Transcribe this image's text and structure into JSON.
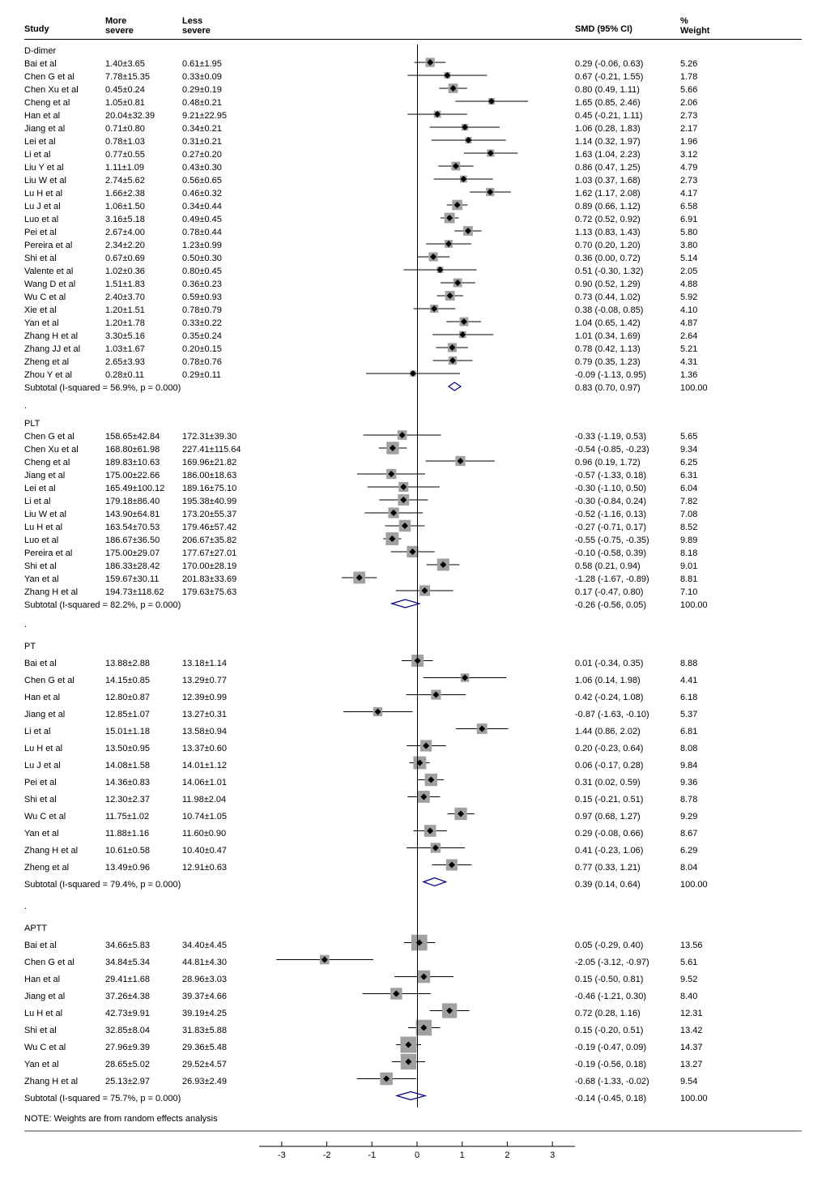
{
  "chart_type": "forest-plot",
  "headers": {
    "study": "Study",
    "more": "More\nsevere",
    "less": "Less\nsevere",
    "smd": "SMD (95% CI)",
    "weight": "%\nWeight"
  },
  "plot": {
    "x_min": -3.5,
    "x_max": 3.5,
    "zero_line": 0,
    "ticks": [
      -3,
      -2,
      -1,
      0,
      1,
      2,
      3
    ],
    "marker_fill": "#a0a0a0",
    "marker_stroke": "#000",
    "line_color": "#000",
    "diamond_fill": "none",
    "diamond_stroke": "#000080",
    "diamond_stroke_width": 1.2,
    "background": "#ffffff"
  },
  "note": "NOTE: Weights are from random effects analysis",
  "groups": [
    {
      "name": "D-dimer",
      "subtotal_text": "Subtotal  (I-squared = 56.9%, p = 0.000)",
      "subtotal": {
        "smd": 0.83,
        "lo": 0.7,
        "hi": 0.97,
        "weight": "100.00"
      },
      "row_class": "",
      "rows": [
        {
          "study": "Bai et al",
          "more": "1.40±3.65",
          "less": "0.61±1.95",
          "smd": 0.29,
          "lo": -0.06,
          "hi": 0.63,
          "w": 5.26,
          "ci": "0.29 (-0.06, 0.63)",
          "wt": "5.26"
        },
        {
          "study": "Chen G et al",
          "more": "7.78±15.35",
          "less": "0.33±0.09",
          "smd": 0.67,
          "lo": -0.21,
          "hi": 1.55,
          "w": 1.78,
          "ci": "0.67 (-0.21, 1.55)",
          "wt": "1.78"
        },
        {
          "study": "Chen Xu et al",
          "more": "0.45±0.24",
          "less": "0.29±0.19",
          "smd": 0.8,
          "lo": 0.49,
          "hi": 1.11,
          "w": 5.66,
          "ci": "0.80 (0.49, 1.11)",
          "wt": "5.66"
        },
        {
          "study": "Cheng et al",
          "more": "1.05±0.81",
          "less": "0.48±0.21",
          "smd": 1.65,
          "lo": 0.85,
          "hi": 2.46,
          "w": 2.06,
          "ci": "1.65 (0.85, 2.46)",
          "wt": "2.06",
          "arrow_right": true
        },
        {
          "study": "Han et al",
          "more": "20.04±32.39",
          "less": "9.21±22.95",
          "smd": 0.45,
          "lo": -0.21,
          "hi": 1.11,
          "w": 2.73,
          "ci": "0.45 (-0.21, 1.11)",
          "wt": "2.73"
        },
        {
          "study": "Jiang et al",
          "more": "0.71±0.80",
          "less": "0.34±0.21",
          "smd": 1.06,
          "lo": 0.28,
          "hi": 1.83,
          "w": 2.17,
          "ci": "1.06 (0.28, 1.83)",
          "wt": "2.17"
        },
        {
          "study": "Lei et al",
          "more": "0.78±1.03",
          "less": "0.31±0.21",
          "smd": 1.14,
          "lo": 0.32,
          "hi": 1.97,
          "w": 1.96,
          "ci": "1.14 (0.32, 1.97)",
          "wt": "1.96"
        },
        {
          "study": "Li et al",
          "more": "0.77±0.55",
          "less": "0.27±0.20",
          "smd": 1.63,
          "lo": 1.04,
          "hi": 2.23,
          "w": 3.12,
          "ci": "1.63 (1.04, 2.23)",
          "wt": "3.12"
        },
        {
          "study": "Liu Y et al",
          "more": "1.11±1.09",
          "less": "0.43±0.30",
          "smd": 0.86,
          "lo": 0.47,
          "hi": 1.25,
          "w": 4.79,
          "ci": "0.86 (0.47, 1.25)",
          "wt": "4.79"
        },
        {
          "study": "Liu W et al",
          "more": "2.74±5.62",
          "less": "0.56±0.65",
          "smd": 1.03,
          "lo": 0.37,
          "hi": 1.68,
          "w": 2.73,
          "ci": "1.03 (0.37, 1.68)",
          "wt": "2.73"
        },
        {
          "study": "Lu H et al",
          "more": "1.66±2.38",
          "less": "0.46±0.32",
          "smd": 1.62,
          "lo": 1.17,
          "hi": 2.08,
          "w": 4.17,
          "ci": "1.62 (1.17, 2.08)",
          "wt": "4.17"
        },
        {
          "study": "Lu J et al",
          "more": "1.06±1.50",
          "less": "0.34±0.44",
          "smd": 0.89,
          "lo": 0.66,
          "hi": 1.12,
          "w": 6.58,
          "ci": "0.89 (0.66, 1.12)",
          "wt": "6.58"
        },
        {
          "study": "Luo et al",
          "more": "3.16±5.18",
          "less": "0.49±0.45",
          "smd": 0.72,
          "lo": 0.52,
          "hi": 0.92,
          "w": 6.91,
          "ci": "0.72 (0.52, 0.92)",
          "wt": "6.91"
        },
        {
          "study": "Pei et al",
          "more": "2.67±4.00",
          "less": "0.78±0.44",
          "smd": 1.13,
          "lo": 0.83,
          "hi": 1.43,
          "w": 5.8,
          "ci": "1.13 (0.83, 1.43)",
          "wt": "5.80"
        },
        {
          "study": "Pereira et al",
          "more": "2.34±2.20",
          "less": "1.23±0.99",
          "smd": 0.7,
          "lo": 0.2,
          "hi": 1.2,
          "w": 3.8,
          "ci": "0.70 (0.20, 1.20)",
          "wt": "3.80"
        },
        {
          "study": "Shi et al",
          "more": "0.67±0.69",
          "less": "0.50±0.30",
          "smd": 0.36,
          "lo": 0.0,
          "hi": 0.72,
          "w": 5.14,
          "ci": "0.36 (0.00, 0.72)",
          "wt": "5.14"
        },
        {
          "study": "Valente et al",
          "more": "1.02±0.36",
          "less": "0.80±0.45",
          "smd": 0.51,
          "lo": -0.3,
          "hi": 1.32,
          "w": 2.05,
          "ci": "0.51 (-0.30, 1.32)",
          "wt": "2.05"
        },
        {
          "study": "Wang D et al",
          "more": "1.51±1.83",
          "less": "0.36±0.23",
          "smd": 0.9,
          "lo": 0.52,
          "hi": 1.29,
          "w": 4.88,
          "ci": "0.90 (0.52, 1.29)",
          "wt": "4.88"
        },
        {
          "study": "Wu C et al",
          "more": "2.40±3.70",
          "less": "0.59±0.93",
          "smd": 0.73,
          "lo": 0.44,
          "hi": 1.02,
          "w": 5.92,
          "ci": "0.73 (0.44, 1.02)",
          "wt": "5.92"
        },
        {
          "study": "Xie et al",
          "more": "1.20±1.51",
          "less": "0.78±0.79",
          "smd": 0.38,
          "lo": -0.08,
          "hi": 0.85,
          "w": 4.1,
          "ci": "0.38 (-0.08, 0.85)",
          "wt": "4.10"
        },
        {
          "study": "Yan et al",
          "more": "1.20±1.78",
          "less": "0.33±0.22",
          "smd": 1.04,
          "lo": 0.65,
          "hi": 1.42,
          "w": 4.87,
          "ci": "1.04 (0.65, 1.42)",
          "wt": "4.87"
        },
        {
          "study": "Zhang H et al",
          "more": "3.30±5.16",
          "less": "0.35±0.24",
          "smd": 1.01,
          "lo": 0.34,
          "hi": 1.69,
          "w": 2.64,
          "ci": "1.01 (0.34, 1.69)",
          "wt": "2.64"
        },
        {
          "study": "Zhang JJ et al",
          "more": "1.03±1.67",
          "less": "0.20±0.15",
          "smd": 0.78,
          "lo": 0.42,
          "hi": 1.13,
          "w": 5.21,
          "ci": "0.78 (0.42, 1.13)",
          "wt": "5.21"
        },
        {
          "study": "Zheng et al",
          "more": "2.65±3.93",
          "less": "0.78±0.76",
          "smd": 0.79,
          "lo": 0.35,
          "hi": 1.23,
          "w": 4.31,
          "ci": "0.79 (0.35, 1.23)",
          "wt": "4.31"
        },
        {
          "study": "Zhou Y et al",
          "more": "0.28±0.11",
          "less": "0.29±0.11",
          "smd": -0.09,
          "lo": -1.13,
          "hi": 0.95,
          "w": 1.36,
          "ci": "-0.09 (-1.13, 0.95)",
          "wt": "1.36"
        }
      ]
    },
    {
      "name": "PLT",
      "prefix": ".",
      "subtotal_text": "Subtotal (I-squared = 82.2%, p = 0.000)",
      "subtotal": {
        "smd": -0.26,
        "lo": -0.56,
        "hi": 0.05,
        "weight": "100.00"
      },
      "row_class": "",
      "rows": [
        {
          "study": "Chen G et al",
          "more": "158.65±42.84",
          "less": "172.31±39.30",
          "smd": -0.33,
          "lo": -1.19,
          "hi": 0.53,
          "w": 5.65,
          "ci": "-0.33 (-1.19, 0.53)",
          "wt": "5.65"
        },
        {
          "study": "Chen Xu et al",
          "more": "168.80±61.98",
          "less": "227.41±115.64",
          "smd": -0.54,
          "lo": -0.85,
          "hi": -0.23,
          "w": 9.34,
          "ci": "-0.54 (-0.85, -0.23)",
          "wt": "9.34"
        },
        {
          "study": "Cheng et al",
          "more": "189.83±10.63",
          "less": "169.96±21.82",
          "smd": 0.96,
          "lo": 0.19,
          "hi": 1.72,
          "w": 6.25,
          "ci": "0.96 (0.19, 1.72)",
          "wt": "6.25"
        },
        {
          "study": "Jiang et al",
          "more": "175.00±22.66",
          "less": "186.00±18.63",
          "smd": -0.57,
          "lo": -1.33,
          "hi": 0.18,
          "w": 6.31,
          "ci": "-0.57 (-1.33, 0.18)",
          "wt": "6.31"
        },
        {
          "study": "Lei et al",
          "more": "165.49±100.12",
          "less": "189.16±75.10",
          "smd": -0.3,
          "lo": -1.1,
          "hi": 0.5,
          "w": 6.04,
          "ci": "-0.30 (-1.10, 0.50)",
          "wt": "6.04"
        },
        {
          "study": "Li et al",
          "more": "179.18±86.40",
          "less": "195.38±40.99",
          "smd": -0.3,
          "lo": -0.84,
          "hi": 0.24,
          "w": 7.82,
          "ci": "-0.30 (-0.84, 0.24)",
          "wt": "7.82"
        },
        {
          "study": "Liu W et al",
          "more": "143.90±64.81",
          "less": "173.20±55.37",
          "smd": -0.52,
          "lo": -1.16,
          "hi": 0.13,
          "w": 7.08,
          "ci": "-0.52 (-1.16, 0.13)",
          "wt": "7.08"
        },
        {
          "study": "Lu H et al",
          "more": "163.54±70.53",
          "less": "179.46±57.42",
          "smd": -0.27,
          "lo": -0.71,
          "hi": 0.17,
          "w": 8.52,
          "ci": "-0.27 (-0.71, 0.17)",
          "wt": "8.52"
        },
        {
          "study": "Luo et al",
          "more": "186.67±36.50",
          "less": "206.67±35.82",
          "smd": -0.55,
          "lo": -0.75,
          "hi": -0.35,
          "w": 9.89,
          "ci": "-0.55 (-0.75, -0.35)",
          "wt": "9.89"
        },
        {
          "study": "Pereira et al",
          "more": "175.00±29.07",
          "less": "177.67±27.01",
          "smd": -0.1,
          "lo": -0.58,
          "hi": 0.39,
          "w": 8.18,
          "ci": "-0.10 (-0.58, 0.39)",
          "wt": "8.18"
        },
        {
          "study": "Shi et al",
          "more": "186.33±28.42",
          "less": "170.00±28.19",
          "smd": 0.58,
          "lo": 0.21,
          "hi": 0.94,
          "w": 9.01,
          "ci": "0.58 (0.21, 0.94)",
          "wt": "9.01"
        },
        {
          "study": "Yan et al",
          "more": "159.67±30.11",
          "less": "201.83±33.69",
          "smd": -1.28,
          "lo": -1.67,
          "hi": -0.89,
          "w": 8.81,
          "ci": "-1.28 (-1.67, -0.89)",
          "wt": "8.81"
        },
        {
          "study": "Zhang H et al",
          "more": "194.73±118.62",
          "less": "179.63±75.63",
          "smd": 0.17,
          "lo": -0.47,
          "hi": 0.8,
          "w": 7.1,
          "ci": "0.17 (-0.47, 0.80)",
          "wt": "7.10"
        }
      ]
    },
    {
      "name": "PT",
      "prefix": ".",
      "subtotal_text": "Subtotal  (I-squared = 79.4%, p = 0.000)",
      "subtotal": {
        "smd": 0.39,
        "lo": 0.14,
        "hi": 0.64,
        "weight": "100.00"
      },
      "row_class": "pt-group",
      "rows": [
        {
          "study": "Bai et al",
          "more": "13.88±2.88",
          "less": "13.18±1.14",
          "smd": 0.01,
          "lo": -0.34,
          "hi": 0.35,
          "w": 8.88,
          "ci": "0.01 (-0.34, 0.35)",
          "wt": "8.88"
        },
        {
          "study": "Chen G et al",
          "more": "14.15±0.85",
          "less": "13.29±0.77",
          "smd": 1.06,
          "lo": 0.14,
          "hi": 1.98,
          "w": 4.41,
          "ci": "1.06 (0.14, 1.98)",
          "wt": "4.41"
        },
        {
          "study": "Han et al",
          "more": "12.80±0.87",
          "less": "12.39±0.99",
          "smd": 0.42,
          "lo": -0.24,
          "hi": 1.08,
          "w": 6.18,
          "ci": "0.42 (-0.24, 1.08)",
          "wt": "6.18"
        },
        {
          "study": "Jiang et al",
          "more": "12.85±1.07",
          "less": "13.27±0.31",
          "smd": -0.87,
          "lo": -1.63,
          "hi": -0.1,
          "w": 5.37,
          "ci": "-0.87 (-1.63, -0.10)",
          "wt": "5.37"
        },
        {
          "study": "Li et al",
          "more": "15.01±1.18",
          "less": "13.58±0.94",
          "smd": 1.44,
          "lo": 0.86,
          "hi": 2.02,
          "w": 6.81,
          "ci": "1.44 (0.86, 2.02)",
          "wt": "6.81"
        },
        {
          "study": "Lu H et al",
          "more": "13.50±0.95",
          "less": "13.37±0.60",
          "smd": 0.2,
          "lo": -0.23,
          "hi": 0.64,
          "w": 8.08,
          "ci": "0.20 (-0.23, 0.64)",
          "wt": "8.08"
        },
        {
          "study": "Lu J et al",
          "more": "14.08±1.58",
          "less": "14.01±1.12",
          "smd": 0.06,
          "lo": -0.17,
          "hi": 0.28,
          "w": 9.84,
          "ci": "0.06 (-0.17, 0.28)",
          "wt": "9.84"
        },
        {
          "study": "Pei et al",
          "more": "14.36±0.83",
          "less": "14.06±1.01",
          "smd": 0.31,
          "lo": 0.02,
          "hi": 0.59,
          "w": 9.36,
          "ci": "0.31 (0.02, 0.59)",
          "wt": "9.36"
        },
        {
          "study": "Shi et al",
          "more": "12.30±2.37",
          "less": "11.98±2.04",
          "smd": 0.15,
          "lo": -0.21,
          "hi": 0.51,
          "w": 8.78,
          "ci": "0.15 (-0.21, 0.51)",
          "wt": "8.78"
        },
        {
          "study": "Wu C et al",
          "more": "11.75±1.02",
          "less": "10.74±1.05",
          "smd": 0.97,
          "lo": 0.68,
          "hi": 1.27,
          "w": 9.29,
          "ci": "0.97 (0.68, 1.27)",
          "wt": "9.29"
        },
        {
          "study": "Yan et al",
          "more": "11.88±1.16",
          "less": "11.60±0.90",
          "smd": 0.29,
          "lo": -0.08,
          "hi": 0.66,
          "w": 8.67,
          "ci": "0.29 (-0.08, 0.66)",
          "wt": "8.67"
        },
        {
          "study": "Zhang H et al",
          "more": "10.61±0.58",
          "less": "10.40±0.47",
          "smd": 0.41,
          "lo": -0.23,
          "hi": 1.06,
          "w": 6.29,
          "ci": "0.41 (-0.23, 1.06)",
          "wt": "6.29"
        },
        {
          "study": "Zheng et al",
          "more": "13.49±0.96",
          "less": "12.91±0.63",
          "smd": 0.77,
          "lo": 0.33,
          "hi": 1.21,
          "w": 8.04,
          "ci": "0.77 (0.33, 1.21)",
          "wt": "8.04"
        }
      ]
    },
    {
      "name": "APTT",
      "prefix": ".",
      "subtotal_text": "Subtotal  (I-squared = 75.7%, p = 0.000)",
      "subtotal": {
        "smd": -0.14,
        "lo": -0.45,
        "hi": 0.18,
        "weight": "100.00"
      },
      "row_class": "aptt-group",
      "rows": [
        {
          "study": "Bai et al",
          "more": "34.66±5.83",
          "less": "34.40±4.45",
          "smd": 0.05,
          "lo": -0.29,
          "hi": 0.4,
          "w": 13.56,
          "ci": "0.05 (-0.29, 0.40)",
          "wt": "13.56"
        },
        {
          "study": "Chen G et al",
          "more": "34.84±5.34",
          "less": "44.81±4.30",
          "smd": -2.05,
          "lo": -3.12,
          "hi": -0.97,
          "w": 5.61,
          "ci": "-2.05 (-3.12, -0.97)",
          "wt": "5.61",
          "arrow_left": true
        },
        {
          "study": "Han et al",
          "more": "29.41±1.68",
          "less": "28.96±3.03",
          "smd": 0.15,
          "lo": -0.5,
          "hi": 0.81,
          "w": 9.52,
          "ci": "0.15 (-0.50, 0.81)",
          "wt": "9.52"
        },
        {
          "study": "Jiang et al",
          "more": "37.26±4.38",
          "less": "39.37±4.66",
          "smd": -0.46,
          "lo": -1.21,
          "hi": 0.3,
          "w": 8.4,
          "ci": "-0.46 (-1.21, 0.30)",
          "wt": "8.40"
        },
        {
          "study": "Lu H et al",
          "more": "42.73±9.91",
          "less": "39.19±4.25",
          "smd": 0.72,
          "lo": 0.28,
          "hi": 1.16,
          "w": 12.31,
          "ci": "0.72 (0.28, 1.16)",
          "wt": "12.31"
        },
        {
          "study": "Shi et al",
          "more": "32.85±8.04",
          "less": "31.83±5.88",
          "smd": 0.15,
          "lo": -0.2,
          "hi": 0.51,
          "w": 13.42,
          "ci": "0.15 (-0.20, 0.51)",
          "wt": "13.42"
        },
        {
          "study": "Wu C et al",
          "more": "27.96±9.39",
          "less": "29.36±5.48",
          "smd": -0.19,
          "lo": -0.47,
          "hi": 0.09,
          "w": 14.37,
          "ci": "-0.19 (-0.47, 0.09)",
          "wt": "14.37"
        },
        {
          "study": "Yan et al",
          "more": "28.65±5.02",
          "less": "29.52±4.57",
          "smd": -0.19,
          "lo": -0.56,
          "hi": 0.18,
          "w": 13.27,
          "ci": "-0.19 (-0.56, 0.18)",
          "wt": "13.27"
        },
        {
          "study": "Zhang H et al",
          "more": "25.13±2.97",
          "less": "26.93±2.49",
          "smd": -0.68,
          "lo": -1.33,
          "hi": -0.02,
          "w": 9.54,
          "ci": "-0.68 (-1.33, -0.02)",
          "wt": "9.54"
        }
      ]
    }
  ]
}
